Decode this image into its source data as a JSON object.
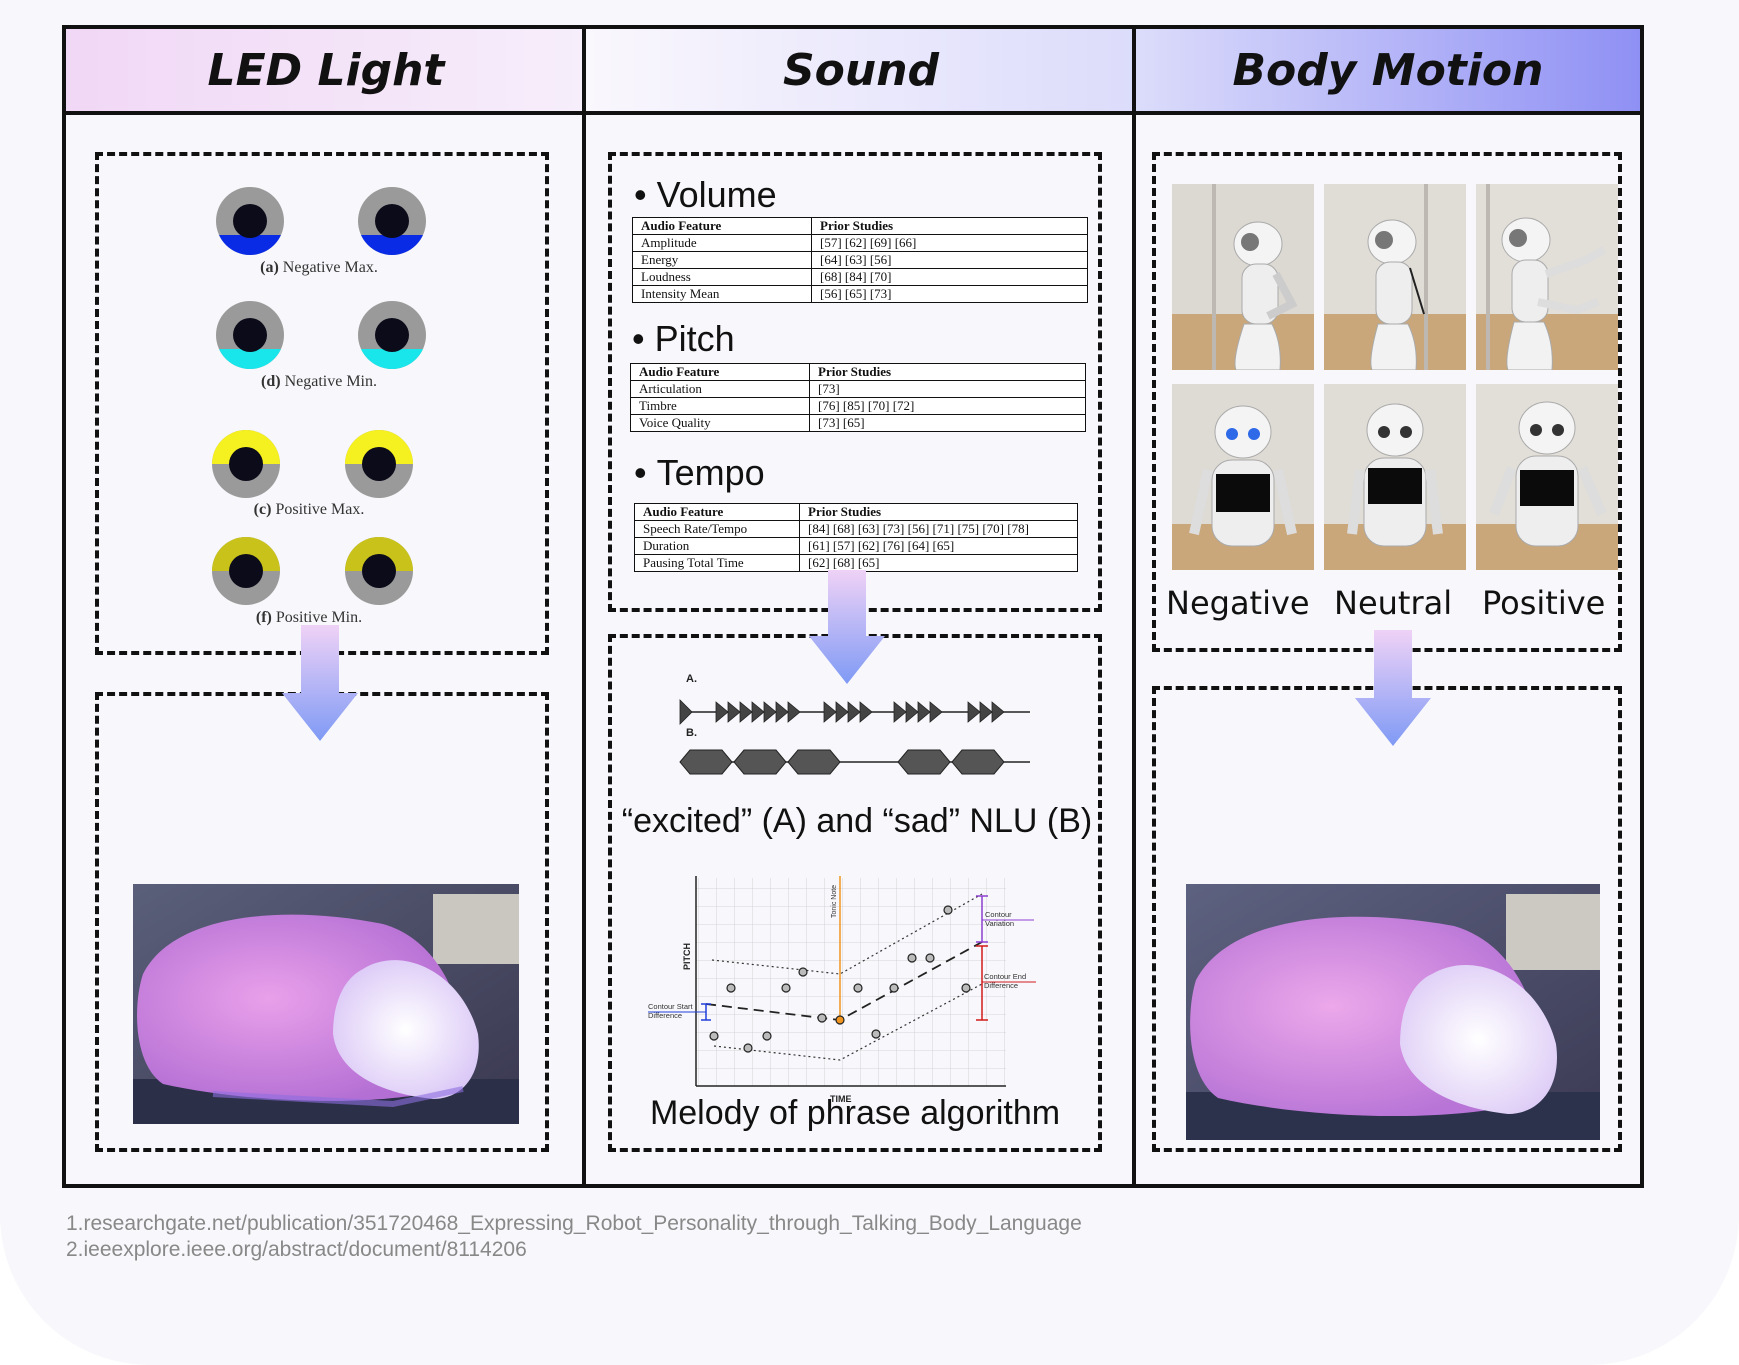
{
  "headers": {
    "led": "LED Light",
    "sound": "Sound",
    "motion": "Body Motion"
  },
  "led": {
    "captions": [
      {
        "letter": "(a)",
        "text": " Negative Max."
      },
      {
        "letter": "(d)",
        "text": " Negative Min."
      },
      {
        "letter": "(c)",
        "text": " Positive Max."
      },
      {
        "letter": "(f)",
        "text": " Positive Min."
      }
    ],
    "colors": {
      "negative_max": "#0a2be6",
      "negative_min": "#19e6ea",
      "positive_max": "#f5f020",
      "positive_min": "#c9c21a",
      "ring": "#9a9a9a"
    }
  },
  "sound": {
    "sections": [
      {
        "title": "Volume",
        "col1": "Audio Feature",
        "col2": "Prior Studies",
        "rows": [
          [
            "Amplitude",
            "[57] [62] [69] [66]"
          ],
          [
            "Energy",
            "[64] [63] [56]"
          ],
          [
            "Loudness",
            "[68] [84] [70]"
          ],
          [
            "Intensity Mean",
            "[56] [65] [73]"
          ]
        ]
      },
      {
        "title": "Pitch",
        "col1": "Audio Feature",
        "col2": "Prior Studies",
        "rows": [
          [
            "Articulation",
            "[73]"
          ],
          [
            "Timbre",
            "[76] [85] [70] [72]"
          ],
          [
            "Voice Quality",
            "[73] [65]"
          ]
        ]
      },
      {
        "title": "Tempo",
        "col1": "Audio Feature",
        "col2": "Prior Studies",
        "rows": [
          [
            "Speech Rate/Tempo",
            "[84] [68] [63] [73] [56] [71] [75] [70] [78]"
          ],
          [
            "Duration",
            "[61] [57] [62] [76] [64] [65]"
          ],
          [
            "Pausing Total Time",
            "[62] [68] [65]"
          ]
        ]
      }
    ],
    "wave_labels": {
      "a": "A.",
      "b": "B."
    },
    "nlu_caption": "“excited” (A) and  “sad” NLU (B)",
    "melody": {
      "pitch_label": "PITCH",
      "time_label": "TIME",
      "tonic_label": "Tonic Note",
      "contour_variation": "Contour Variation",
      "contour_end": "Contour End Difference",
      "contour_start": "Contour Start Difference"
    },
    "melody_caption": "Melody of phrase algorithm"
  },
  "motion": {
    "labels": [
      "Negative",
      "Neutral",
      "Positive"
    ]
  },
  "references": [
    "1.researchgate.net/publication/351720468_Expressing_Robot_Personality_through_Talking_Body_Language",
    "2.ieeexplore.ieee.org/abstract/document/8114206"
  ]
}
